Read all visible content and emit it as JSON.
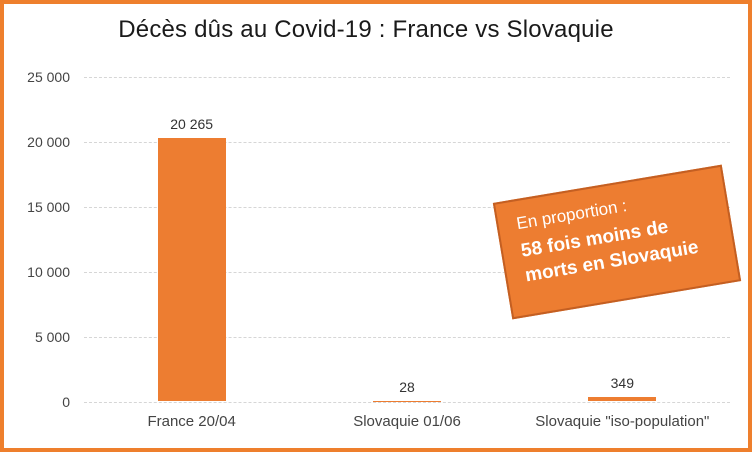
{
  "frame": {
    "border_color": "#ee7f2d",
    "background": "#ffffff"
  },
  "chart_data": {
    "type": "bar",
    "title": "Décès dûs au Covid-19 : France vs Slovaquie",
    "categories": [
      "France 20/04",
      "Slovaquie 01/06",
      "Slovaquie \"iso-population\""
    ],
    "values": [
      20265,
      28,
      349
    ],
    "data_labels": [
      "20 265",
      "28",
      "349"
    ],
    "y_ticks": [
      0,
      5000,
      10000,
      15000,
      20000,
      25000
    ],
    "y_tick_labels": [
      "0",
      "5 000",
      "10 000",
      "15 000",
      "20 000",
      "25 000"
    ],
    "ylim": [
      0,
      25000
    ],
    "xlabel": "",
    "ylabel": "",
    "grid": true,
    "legend": false,
    "bar_color": "#ed7d31",
    "gridline_color": "#d6d6d6",
    "tick_label_color": "#444444",
    "data_label_color": "#333333",
    "title_color": "#1a1a1a"
  },
  "annotation": {
    "line1": "En proportion :",
    "line2": "58 fois moins de",
    "line3": "morts en Slovaquie",
    "bg_color": "#ed7d31",
    "border_color": "#c45f22",
    "text_color": "#ffffff"
  }
}
